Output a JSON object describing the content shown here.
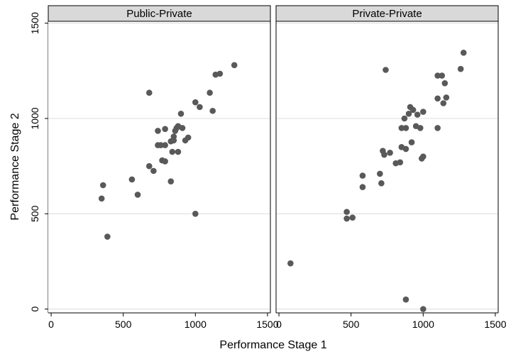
{
  "chart_data": {
    "type": "scatter",
    "ylabel": "Performance Stage 2",
    "xlabel": "Performance Stage 1",
    "xlim": [
      -20,
      1520
    ],
    "ylim": [
      -20,
      1510
    ],
    "xticks": [
      "0",
      "500",
      "1000",
      "1500"
    ],
    "yticks": [
      "0",
      "500",
      "1000",
      "1500"
    ],
    "grid": "horizontal",
    "marker_color": "#595959",
    "panels": [
      {
        "title": "Public-Private",
        "points": [
          [
            350,
            580
          ],
          [
            360,
            650
          ],
          [
            390,
            380
          ],
          [
            560,
            680
          ],
          [
            600,
            600
          ],
          [
            680,
            1135
          ],
          [
            680,
            750
          ],
          [
            710,
            725
          ],
          [
            740,
            935
          ],
          [
            740,
            860
          ],
          [
            760,
            860
          ],
          [
            770,
            780
          ],
          [
            790,
            860
          ],
          [
            790,
            945
          ],
          [
            790,
            775
          ],
          [
            830,
            670
          ],
          [
            830,
            880
          ],
          [
            840,
            825
          ],
          [
            850,
            905
          ],
          [
            850,
            885
          ],
          [
            860,
            935
          ],
          [
            870,
            950
          ],
          [
            880,
            960
          ],
          [
            880,
            825
          ],
          [
            900,
            1025
          ],
          [
            910,
            950
          ],
          [
            930,
            885
          ],
          [
            950,
            900
          ],
          [
            1000,
            500
          ],
          [
            1000,
            1085
          ],
          [
            1030,
            1060
          ],
          [
            1100,
            1135
          ],
          [
            1120,
            1040
          ],
          [
            1140,
            1230
          ],
          [
            1170,
            1235
          ],
          [
            1270,
            1280
          ]
        ]
      },
      {
        "title": "Private-Private",
        "points": [
          [
            80,
            240
          ],
          [
            470,
            510
          ],
          [
            470,
            475
          ],
          [
            510,
            480
          ],
          [
            580,
            700
          ],
          [
            580,
            640
          ],
          [
            700,
            710
          ],
          [
            710,
            660
          ],
          [
            720,
            830
          ],
          [
            730,
            810
          ],
          [
            740,
            1255
          ],
          [
            770,
            820
          ],
          [
            810,
            765
          ],
          [
            840,
            770
          ],
          [
            850,
            850
          ],
          [
            850,
            950
          ],
          [
            870,
            1000
          ],
          [
            880,
            950
          ],
          [
            880,
            840
          ],
          [
            880,
            50
          ],
          [
            900,
            1025
          ],
          [
            910,
            1060
          ],
          [
            920,
            875
          ],
          [
            930,
            1045
          ],
          [
            950,
            960
          ],
          [
            960,
            1020
          ],
          [
            980,
            950
          ],
          [
            990,
            790
          ],
          [
            1000,
            1035
          ],
          [
            1000,
            800
          ],
          [
            1000,
            0
          ],
          [
            1100,
            1225
          ],
          [
            1100,
            1105
          ],
          [
            1100,
            950
          ],
          [
            1130,
            1225
          ],
          [
            1140,
            1080
          ],
          [
            1150,
            1185
          ],
          [
            1160,
            1110
          ],
          [
            1260,
            1260
          ],
          [
            1280,
            1345
          ]
        ]
      }
    ]
  }
}
